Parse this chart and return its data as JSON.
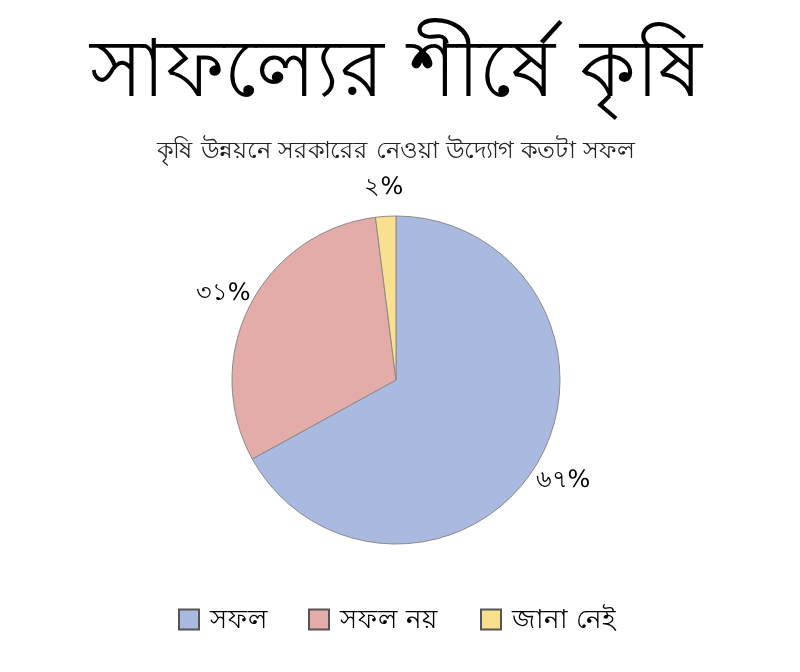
{
  "chart_data": {
    "type": "pie",
    "title": "সাফল্যের শীর্ষে কৃষি",
    "subtitle": "কৃষি উন্নয়নে সরকারের নেওয়া উদ্যোগ কতটা সফল",
    "categories": [
      "সফল",
      "সফল নয়",
      "জানা নেই"
    ],
    "values": [
      67,
      31,
      2
    ],
    "value_labels": [
      "৬৭%",
      "৩১%",
      "২%"
    ],
    "colors": [
      "#a9b9df",
      "#e3aca9",
      "#f9e08f"
    ],
    "legend": "bottom"
  }
}
